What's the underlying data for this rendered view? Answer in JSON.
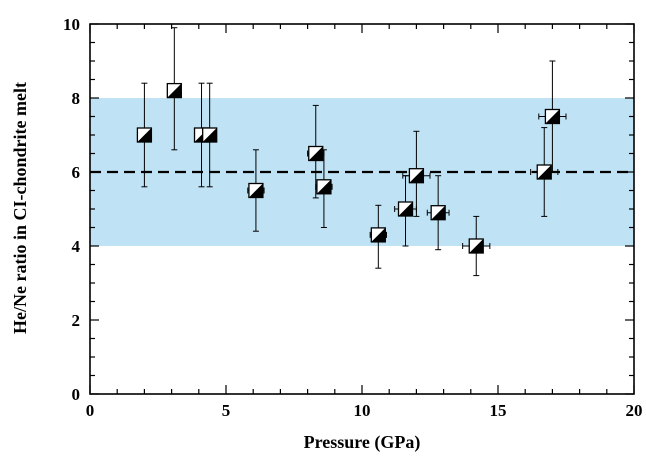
{
  "chart_data": {
    "type": "scatter",
    "xlabel": "Pressure (GPa)",
    "ylabel": "He/Ne ratio in CI-chondrite melt",
    "xlim": [
      0,
      20
    ],
    "ylim": [
      0,
      10
    ],
    "xticks": [
      0,
      5,
      10,
      15,
      20
    ],
    "yticks": [
      0,
      2,
      4,
      6,
      8,
      10
    ],
    "grid": false,
    "legend": "none",
    "band": {
      "y_from": 4,
      "y_to": 8,
      "color": "#bfe3f5"
    },
    "reference_line": {
      "y": 6,
      "style": "dashed"
    },
    "marker": "half-filled square",
    "points": [
      {
        "x": 2.0,
        "y": 7.0,
        "y_lo": 5.6,
        "y_hi": 8.4,
        "x_err": 0.2
      },
      {
        "x": 3.1,
        "y": 8.2,
        "y_lo": 6.6,
        "y_hi": 9.9,
        "x_err": 0.0
      },
      {
        "x": 4.1,
        "y": 7.0,
        "y_lo": 5.6,
        "y_hi": 8.4,
        "x_err": 0.0
      },
      {
        "x": 4.4,
        "y": 7.0,
        "y_lo": 5.6,
        "y_hi": 8.4,
        "x_err": 0.0
      },
      {
        "x": 6.1,
        "y": 5.5,
        "y_lo": 4.4,
        "y_hi": 6.6,
        "x_err": 0.3
      },
      {
        "x": 8.3,
        "y": 6.5,
        "y_lo": 5.3,
        "y_hi": 7.8,
        "x_err": 0.3
      },
      {
        "x": 8.6,
        "y": 5.6,
        "y_lo": 4.5,
        "y_hi": 6.6,
        "x_err": 0.3
      },
      {
        "x": 10.6,
        "y": 4.3,
        "y_lo": 3.4,
        "y_hi": 5.1,
        "x_err": 0.3
      },
      {
        "x": 11.6,
        "y": 5.0,
        "y_lo": 4.0,
        "y_hi": 5.9,
        "x_err": 0.4
      },
      {
        "x": 12.0,
        "y": 5.9,
        "y_lo": 4.8,
        "y_hi": 7.1,
        "x_err": 0.5
      },
      {
        "x": 12.8,
        "y": 4.9,
        "y_lo": 3.9,
        "y_hi": 5.9,
        "x_err": 0.4
      },
      {
        "x": 14.2,
        "y": 4.0,
        "y_lo": 3.2,
        "y_hi": 4.8,
        "x_err": 0.5
      },
      {
        "x": 16.7,
        "y": 6.0,
        "y_lo": 4.8,
        "y_hi": 7.2,
        "x_err": 0.5
      },
      {
        "x": 17.0,
        "y": 7.5,
        "y_lo": 6.0,
        "y_hi": 9.0,
        "x_err": 0.5
      }
    ]
  }
}
